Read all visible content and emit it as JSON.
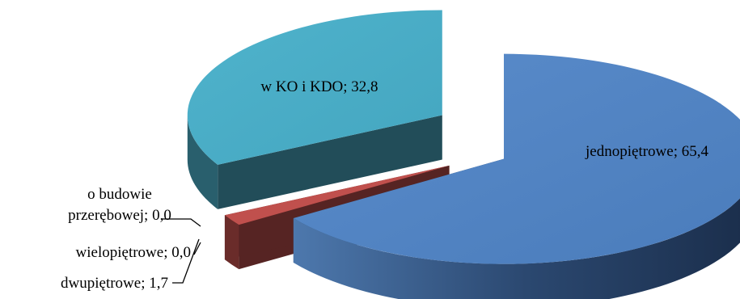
{
  "chart_data": {
    "type": "pie",
    "style": "3d-exploded",
    "categories": [
      "jednopiętrowe",
      "dwupiętrowe",
      "wielopiętrowe",
      "o budowie przerębowej",
      "w KO i KDO"
    ],
    "values": [
      65.4,
      1.7,
      0.0,
      0.0,
      32.8
    ],
    "labels": [
      [
        "jednopiętrowe; 65,4"
      ],
      [
        "dwupiętrowe; 1,7"
      ],
      [
        "wielopiętrowe; 0,0"
      ],
      [
        "o budowie",
        "przerębowej; 0,0"
      ],
      [
        "w KO i KDO; 32,8"
      ]
    ],
    "colors": [
      "#4f81bd",
      "#c0504d",
      "#9bbb59",
      "#8064a2",
      "#4bacc6"
    ],
    "legend": "none"
  }
}
